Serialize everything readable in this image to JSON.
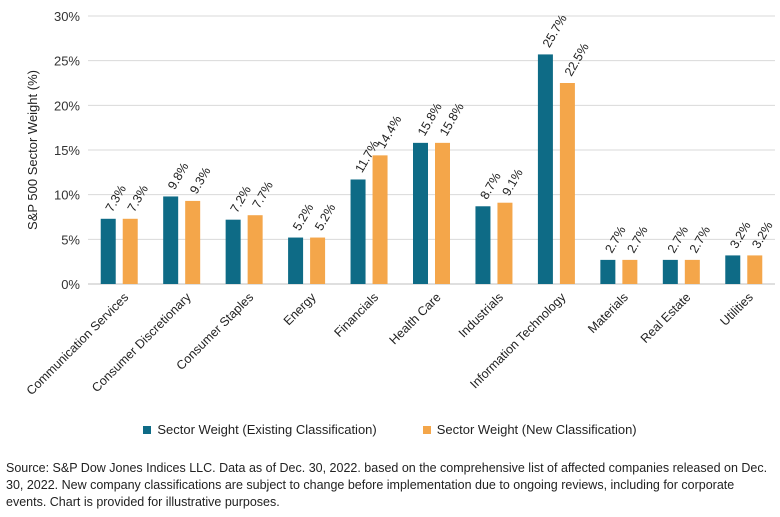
{
  "chart_data": {
    "type": "bar",
    "title": "",
    "xlabel": "",
    "ylabel": "S&P 500 Sector Weight (%)",
    "ylim": [
      0,
      30
    ],
    "yticks": [
      "0%",
      "5%",
      "10%",
      "15%",
      "20%",
      "25%",
      "30%"
    ],
    "ytick_values": [
      0,
      5,
      10,
      15,
      20,
      25,
      30
    ],
    "grid": true,
    "legend_position": "bottom",
    "categories": [
      "Communication Services",
      "Consumer Discretionary",
      "Consumer Staples",
      "Energy",
      "Financials",
      "Health Care",
      "Industrials",
      "Information Technology",
      "Materials",
      "Real Estate",
      "Utilities"
    ],
    "series": [
      {
        "name": "Sector Weight (Existing Classification)",
        "color": "#0e6b86",
        "values": [
          7.3,
          9.8,
          7.2,
          5.2,
          11.7,
          15.8,
          8.7,
          25.7,
          2.7,
          2.7,
          3.2
        ],
        "labels": [
          "7.3%",
          "9.8%",
          "7.2%",
          "5.2%",
          "11.7%",
          "15.8%",
          "8.7%",
          "25.7%",
          "2.7%",
          "2.7%",
          "3.2%"
        ]
      },
      {
        "name": "Sector Weight (New Classification)",
        "color": "#f4a64a",
        "values": [
          7.3,
          9.3,
          7.7,
          5.2,
          14.4,
          15.8,
          9.1,
          22.5,
          2.7,
          2.7,
          3.2
        ],
        "labels": [
          "7.3%",
          "9.3%",
          "7.7%",
          "5.2%",
          "14.4%",
          "15.8%",
          "9.1%",
          "22.5%",
          "2.7%",
          "2.7%",
          "3.2%"
        ]
      }
    ]
  },
  "legend": {
    "existing": "Sector Weight (Existing Classification)",
    "new": "Sector Weight (New Classification)"
  },
  "source_note": "Source: S&P Dow Jones Indices LLC. Data as of Dec. 30, 2022. based on the comprehensive list of affected companies released on Dec. 30, 2022. New company classifications are subject to change before implementation due to ongoing reviews, including for corporate events. Chart is provided for illustrative purposes."
}
